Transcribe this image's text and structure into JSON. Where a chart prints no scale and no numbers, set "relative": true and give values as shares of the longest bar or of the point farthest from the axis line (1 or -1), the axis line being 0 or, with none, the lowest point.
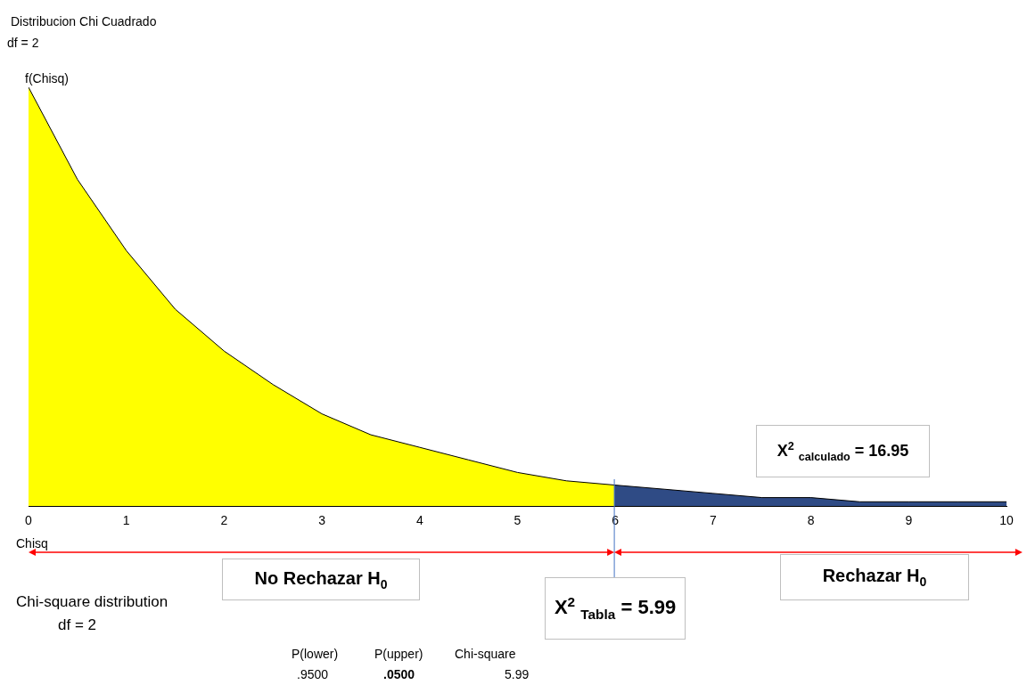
{
  "chart_data": {
    "type": "area",
    "title": "Distribucion Chi Cuadrado",
    "subtitle": "df = 2",
    "xlabel": "Chisq",
    "ylabel": "f(Chisq)",
    "relative": true,
    "marker": "none",
    "xlim": [
      0,
      10
    ],
    "xticks": [
      0,
      1,
      2,
      3,
      4,
      5,
      6,
      7,
      8,
      9,
      10
    ],
    "series": [
      {
        "color": "#ffff00",
        "x": [
          0,
          0.5,
          1,
          1.5,
          2,
          2.5,
          3,
          3.5,
          4,
          4.5,
          5,
          5.5,
          5.99
        ],
        "values": [
          1,
          0.78,
          0.61,
          0.47,
          0.37,
          0.29,
          0.22,
          0.17,
          0.14,
          0.11,
          0.08,
          0.06,
          0.05
        ]
      },
      {
        "color": "#2f4b85",
        "x": [
          5.99,
          6.5,
          7,
          7.5,
          8,
          8.5,
          9,
          9.5,
          10
        ],
        "values": [
          0.05,
          0.04,
          0.03,
          0.02,
          0.02,
          0.01,
          0.01,
          0.01,
          0.01
        ]
      }
    ],
    "ref_lines": [
      {
        "axis": "x",
        "value": 5.99,
        "label": "X$^{2}$ $_{Tabla}$ = 5.99",
        "color": "#4472c4"
      }
    ],
    "annotations": [
      "X$^{2}$ $_{calculado}$ = 16.95",
      "No Rechazar H$_{0}$",
      "Rechazar H$_{0}$",
      "Chi-square distribution",
      "df = 2",
      "P(lower)",
      ".9500",
      "P(upper)",
      ".0500",
      "Chi-square",
      "5.99"
    ]
  }
}
